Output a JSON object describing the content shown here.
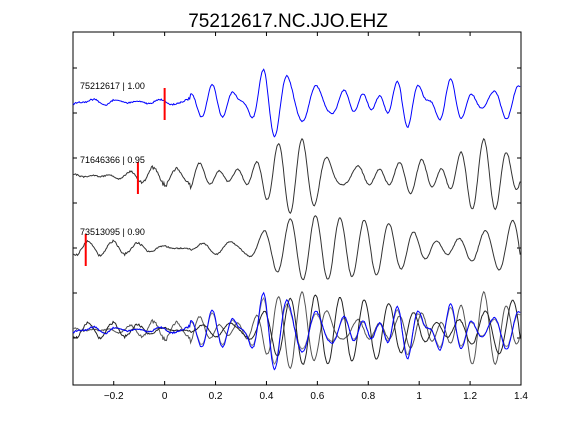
{
  "chart_data": {
    "type": "line",
    "title": "75212617.NC.JJO.EHZ",
    "xlabel": "",
    "ylabel": "",
    "xlim": [
      -0.36,
      1.4
    ],
    "xticks": [
      -0.2,
      0,
      0.2,
      0.4,
      0.6,
      0.8,
      1,
      1.2,
      1.4
    ],
    "xtick_labels": [
      "−0.2",
      "0",
      "0.2",
      "0.4",
      "0.6",
      "0.8",
      "1",
      "1.2",
      "1.4"
    ],
    "grid": false,
    "traces": [
      {
        "label": "75212617 | 1.00",
        "event_id": "75212617",
        "correlation": 1.0,
        "color": "#0000ff",
        "pick_time": 0.0
      },
      {
        "label": "71646366 | 0.95",
        "event_id": "71646366",
        "correlation": 0.95,
        "color": "#333333",
        "pick_time": -0.105
      },
      {
        "label": "73513095 | 0.90",
        "event_id": "73513095",
        "correlation": 0.9,
        "color": "#333333",
        "pick_time": -0.31
      }
    ],
    "stack": {
      "colors": [
        "#808080",
        "#555555",
        "#222222",
        "#0000ff"
      ]
    },
    "pick_color": "#ff0000"
  }
}
